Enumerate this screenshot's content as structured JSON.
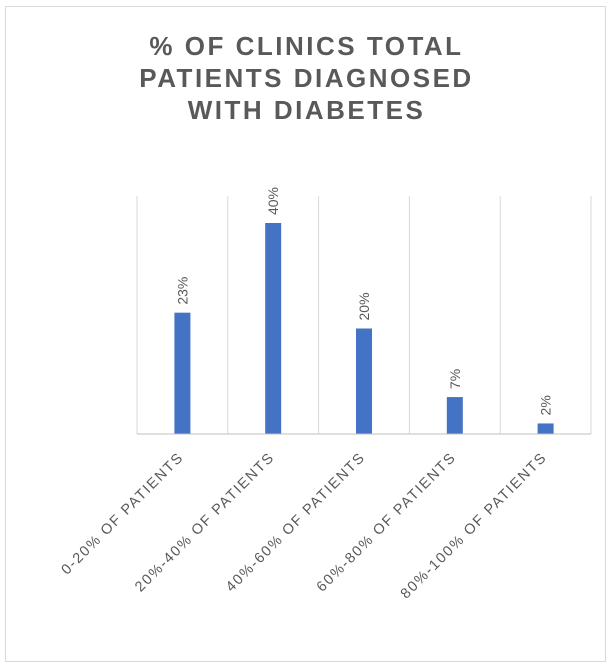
{
  "chart_data": {
    "type": "bar",
    "title": "% OF CLINICS TOTAL\nPATIENTS DIAGNOSED\nWITH DIABETES",
    "categories": [
      "0-20% OF PATIENTS",
      "20%-40% OF PATIENTS",
      "40%-60% OF PATIENTS",
      "60%-80% OF PATIENTS",
      "80%-100% OF PATIENTS"
    ],
    "values": [
      23,
      40,
      20,
      7,
      2
    ],
    "data_labels": [
      "23%",
      "40%",
      "20%",
      "7%",
      "2%"
    ],
    "value_unit": "%",
    "xlabel": "",
    "ylabel": "",
    "ylim": [
      0,
      45
    ],
    "grid": "vertical",
    "legend": "none",
    "colors": {
      "bar": "#4472c4",
      "text": "#595959",
      "grid": "#d9d9d9",
      "axis": "#bfbfbf"
    }
  }
}
